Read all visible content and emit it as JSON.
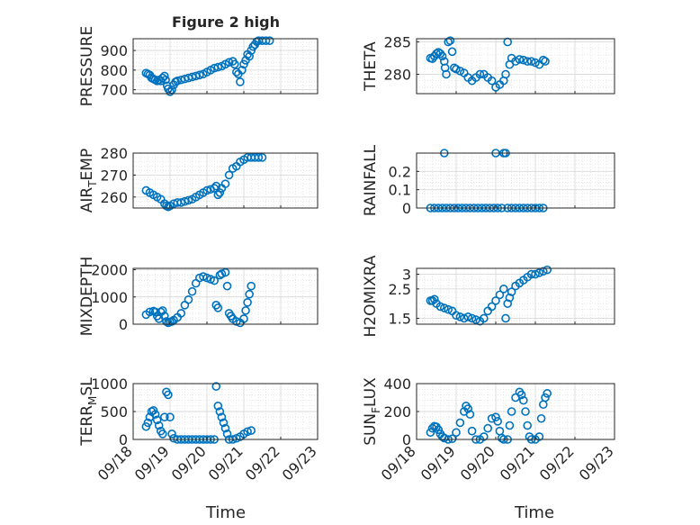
{
  "figure": {
    "title": "Figure 2 high",
    "xlabel": "Time"
  },
  "colors": {
    "marker": "#0072BD",
    "grid": "#d9d9d9",
    "axis": "#262626"
  },
  "chart_data": [
    {
      "type": "scatter",
      "ylabel": "PRESSURE",
      "ylabel_sub": "",
      "ylabel_tail": "",
      "ylim": [
        680,
        960
      ],
      "yticks": [
        700,
        800,
        900
      ],
      "xlim": [
        "09/18",
        "09/23"
      ],
      "xticks": [
        "09/18",
        "09/19",
        "09/20",
        "09/21",
        "09/22",
        "09/23"
      ],
      "points": [
        [
          0.35,
          785
        ],
        [
          0.4,
          780
        ],
        [
          0.45,
          775
        ],
        [
          0.5,
          760
        ],
        [
          0.55,
          755
        ],
        [
          0.6,
          750
        ],
        [
          0.65,
          745
        ],
        [
          0.7,
          750
        ],
        [
          0.75,
          745
        ],
        [
          0.8,
          760
        ],
        [
          0.85,
          770
        ],
        [
          0.88,
          750
        ],
        [
          0.92,
          720
        ],
        [
          0.95,
          705
        ],
        [
          1.0,
          690
        ],
        [
          1.05,
          700
        ],
        [
          1.1,
          725
        ],
        [
          1.15,
          740
        ],
        [
          1.2,
          745
        ],
        [
          1.3,
          750
        ],
        [
          1.4,
          755
        ],
        [
          1.5,
          760
        ],
        [
          1.6,
          765
        ],
        [
          1.7,
          770
        ],
        [
          1.8,
          775
        ],
        [
          1.9,
          780
        ],
        [
          2.0,
          790
        ],
        [
          2.1,
          800
        ],
        [
          2.2,
          810
        ],
        [
          2.3,
          815
        ],
        [
          2.4,
          820
        ],
        [
          2.5,
          830
        ],
        [
          2.6,
          840
        ],
        [
          2.7,
          845
        ],
        [
          2.75,
          830
        ],
        [
          2.8,
          790
        ],
        [
          2.85,
          780
        ],
        [
          2.9,
          740
        ],
        [
          2.95,
          800
        ],
        [
          3.0,
          830
        ],
        [
          3.05,
          850
        ],
        [
          3.1,
          880
        ],
        [
          3.15,
          870
        ],
        [
          3.2,
          900
        ],
        [
          3.25,
          920
        ],
        [
          3.3,
          930
        ],
        [
          3.35,
          945
        ],
        [
          3.4,
          950
        ],
        [
          3.5,
          950
        ],
        [
          3.6,
          950
        ],
        [
          3.7,
          950
        ]
      ]
    },
    {
      "type": "scatter",
      "ylabel": "THETA",
      "ylabel_sub": "",
      "ylabel_tail": "",
      "ylim": [
        277,
        285.5
      ],
      "yticks": [
        280,
        285
      ],
      "xlim": [
        "09/18",
        "09/23"
      ],
      "xticks": [
        "09/18",
        "09/19",
        "09/20",
        "09/21",
        "09/22",
        "09/23"
      ],
      "points": [
        [
          0.35,
          282.5
        ],
        [
          0.4,
          282.4
        ],
        [
          0.45,
          282.8
        ],
        [
          0.5,
          283.2
        ],
        [
          0.55,
          283.4
        ],
        [
          0.6,
          283.2
        ],
        [
          0.65,
          282.8
        ],
        [
          0.7,
          282
        ],
        [
          0.72,
          281
        ],
        [
          0.75,
          280
        ],
        [
          0.8,
          285
        ],
        [
          0.85,
          285.2
        ],
        [
          0.9,
          283.5
        ],
        [
          0.95,
          281
        ],
        [
          1.0,
          280.8
        ],
        [
          1.1,
          280.5
        ],
        [
          1.2,
          280.2
        ],
        [
          1.3,
          279.5
        ],
        [
          1.4,
          279
        ],
        [
          1.5,
          279.5
        ],
        [
          1.6,
          280
        ],
        [
          1.7,
          280
        ],
        [
          1.8,
          279.5
        ],
        [
          1.9,
          279
        ],
        [
          2.0,
          278
        ],
        [
          2.1,
          278.4
        ],
        [
          2.2,
          279
        ],
        [
          2.25,
          280
        ],
        [
          2.3,
          285
        ],
        [
          2.35,
          281.5
        ],
        [
          2.4,
          282.5
        ],
        [
          2.5,
          282
        ],
        [
          2.6,
          282.3
        ],
        [
          2.7,
          282.2
        ],
        [
          2.8,
          282
        ],
        [
          2.9,
          282
        ],
        [
          3.0,
          281.8
        ],
        [
          3.1,
          281.5
        ],
        [
          3.2,
          282.2
        ],
        [
          3.25,
          282
        ]
      ]
    },
    {
      "type": "scatter",
      "ylabel": "AIR",
      "ylabel_sub": "T",
      "ylabel_tail": "EMP",
      "ylim": [
        255,
        280
      ],
      "yticks": [
        260,
        270,
        280
      ],
      "xlim": [
        "09/18",
        "09/23"
      ],
      "xticks": [
        "09/18",
        "09/19",
        "09/20",
        "09/21",
        "09/22",
        "09/23"
      ],
      "points": [
        [
          0.35,
          263
        ],
        [
          0.45,
          262
        ],
        [
          0.55,
          261
        ],
        [
          0.65,
          260
        ],
        [
          0.75,
          259
        ],
        [
          0.85,
          257
        ],
        [
          0.9,
          256
        ],
        [
          0.95,
          255.5
        ],
        [
          1.0,
          256
        ],
        [
          1.1,
          257
        ],
        [
          1.2,
          257.5
        ],
        [
          1.3,
          257.5
        ],
        [
          1.4,
          258
        ],
        [
          1.5,
          258.5
        ],
        [
          1.6,
          259
        ],
        [
          1.7,
          260
        ],
        [
          1.8,
          261
        ],
        [
          1.9,
          262
        ],
        [
          2.0,
          263
        ],
        [
          2.1,
          263.5
        ],
        [
          2.2,
          264
        ],
        [
          2.25,
          265
        ],
        [
          2.3,
          261
        ],
        [
          2.35,
          262
        ],
        [
          2.4,
          264
        ],
        [
          2.5,
          266
        ],
        [
          2.6,
          270
        ],
        [
          2.7,
          273
        ],
        [
          2.8,
          274
        ],
        [
          2.9,
          276
        ],
        [
          3.0,
          277
        ],
        [
          3.1,
          278
        ],
        [
          3.2,
          278
        ],
        [
          3.3,
          278
        ],
        [
          3.4,
          278
        ],
        [
          3.5,
          278
        ]
      ]
    },
    {
      "type": "scatter",
      "ylabel": "RAINFALL",
      "ylabel_sub": "",
      "ylabel_tail": "",
      "ylim": [
        0,
        0.3
      ],
      "yticks": [
        0,
        0.1,
        0.2
      ],
      "xlim": [
        "09/18",
        "09/23"
      ],
      "xticks": [
        "09/18",
        "09/19",
        "09/20",
        "09/21",
        "09/22",
        "09/23"
      ],
      "points": [
        [
          0.35,
          0
        ],
        [
          0.45,
          0
        ],
        [
          0.55,
          0
        ],
        [
          0.65,
          0
        ],
        [
          0.7,
          0.3
        ],
        [
          0.75,
          0
        ],
        [
          0.85,
          0
        ],
        [
          0.95,
          0
        ],
        [
          1.05,
          0
        ],
        [
          1.15,
          0
        ],
        [
          1.25,
          0
        ],
        [
          1.35,
          0
        ],
        [
          1.45,
          0
        ],
        [
          1.55,
          0
        ],
        [
          1.65,
          0
        ],
        [
          1.75,
          0
        ],
        [
          1.85,
          0
        ],
        [
          1.95,
          0
        ],
        [
          2.0,
          0.3
        ],
        [
          2.05,
          0
        ],
        [
          2.15,
          0
        ],
        [
          2.2,
          0.3
        ],
        [
          2.25,
          0.3
        ],
        [
          2.3,
          0
        ],
        [
          2.4,
          0
        ],
        [
          2.5,
          0
        ],
        [
          2.6,
          0
        ],
        [
          2.7,
          0
        ],
        [
          2.8,
          0
        ],
        [
          2.9,
          0
        ],
        [
          3.0,
          0
        ],
        [
          3.1,
          0
        ],
        [
          3.2,
          0
        ]
      ]
    },
    {
      "type": "scatter",
      "ylabel": "MIXDEPTH",
      "ylabel_sub": "",
      "ylabel_tail": "",
      "ylim": [
        0,
        2050
      ],
      "yticks": [
        0,
        1000,
        2000
      ],
      "xlim": [
        "09/18",
        "09/23"
      ],
      "xticks": [
        "09/18",
        "09/19",
        "09/20",
        "09/21",
        "09/22",
        "09/23"
      ],
      "points": [
        [
          0.35,
          350
        ],
        [
          0.45,
          450
        ],
        [
          0.55,
          480
        ],
        [
          0.6,
          450
        ],
        [
          0.65,
          300
        ],
        [
          0.7,
          200
        ],
        [
          0.75,
          450
        ],
        [
          0.8,
          500
        ],
        [
          0.85,
          300
        ],
        [
          0.9,
          100
        ],
        [
          0.95,
          50
        ],
        [
          1.0,
          80
        ],
        [
          1.05,
          100
        ],
        [
          1.1,
          150
        ],
        [
          1.2,
          250
        ],
        [
          1.3,
          400
        ],
        [
          1.4,
          700
        ],
        [
          1.5,
          900
        ],
        [
          1.6,
          1200
        ],
        [
          1.7,
          1500
        ],
        [
          1.8,
          1700
        ],
        [
          1.9,
          1750
        ],
        [
          2.0,
          1700
        ],
        [
          2.1,
          1650
        ],
        [
          2.2,
          1600
        ],
        [
          2.25,
          700
        ],
        [
          2.3,
          600
        ],
        [
          2.35,
          1800
        ],
        [
          2.4,
          1850
        ],
        [
          2.5,
          1900
        ],
        [
          2.55,
          1400
        ],
        [
          2.6,
          400
        ],
        [
          2.65,
          300
        ],
        [
          2.7,
          200
        ],
        [
          2.8,
          100
        ],
        [
          2.9,
          50
        ],
        [
          3.0,
          200
        ],
        [
          3.05,
          500
        ],
        [
          3.1,
          800
        ],
        [
          3.15,
          1100
        ],
        [
          3.2,
          1400
        ]
      ]
    },
    {
      "type": "scatter",
      "ylabel": "H2OMIXRA",
      "ylabel_sub": "",
      "ylabel_tail": "",
      "ylim": [
        1.3,
        3.2
      ],
      "yticks": [
        1.5,
        2.5,
        3
      ],
      "xlim": [
        "09/18",
        "09/23"
      ],
      "xticks": [
        "09/18",
        "09/19",
        "09/20",
        "09/21",
        "09/22",
        "09/23"
      ],
      "points": [
        [
          0.35,
          2.1
        ],
        [
          0.4,
          2.1
        ],
        [
          0.45,
          2.15
        ],
        [
          0.5,
          2.0
        ],
        [
          0.6,
          1.9
        ],
        [
          0.7,
          1.85
        ],
        [
          0.8,
          1.8
        ],
        [
          0.9,
          1.75
        ],
        [
          1.0,
          1.6
        ],
        [
          1.1,
          1.55
        ],
        [
          1.2,
          1.5
        ],
        [
          1.3,
          1.55
        ],
        [
          1.4,
          1.5
        ],
        [
          1.5,
          1.45
        ],
        [
          1.6,
          1.4
        ],
        [
          1.7,
          1.5
        ],
        [
          1.8,
          1.75
        ],
        [
          1.9,
          1.9
        ],
        [
          2.0,
          2.1
        ],
        [
          2.1,
          2.3
        ],
        [
          2.2,
          2.5
        ],
        [
          2.25,
          1.5
        ],
        [
          2.3,
          2.0
        ],
        [
          2.35,
          2.2
        ],
        [
          2.4,
          2.4
        ],
        [
          2.5,
          2.6
        ],
        [
          2.6,
          2.7
        ],
        [
          2.7,
          2.8
        ],
        [
          2.8,
          2.9
        ],
        [
          2.9,
          3.0
        ],
        [
          3.0,
          3.0
        ],
        [
          3.1,
          3.05
        ],
        [
          3.2,
          3.1
        ],
        [
          3.3,
          3.15
        ]
      ]
    },
    {
      "type": "scatter",
      "ylabel": "TERR",
      "ylabel_sub": "M",
      "ylabel_tail": "SL",
      "ylim": [
        0,
        1000
      ],
      "yticks": [
        0,
        500,
        1000
      ],
      "xlim": [
        "09/18",
        "09/23"
      ],
      "xticks": [
        "09/18",
        "09/19",
        "09/20",
        "09/21",
        "09/22",
        "09/23"
      ],
      "points": [
        [
          0.35,
          230
        ],
        [
          0.4,
          300
        ],
        [
          0.45,
          400
        ],
        [
          0.5,
          500
        ],
        [
          0.55,
          520
        ],
        [
          0.6,
          450
        ],
        [
          0.65,
          350
        ],
        [
          0.7,
          250
        ],
        [
          0.75,
          150
        ],
        [
          0.8,
          100
        ],
        [
          0.85,
          400
        ],
        [
          0.9,
          850
        ],
        [
          0.95,
          800
        ],
        [
          1.0,
          400
        ],
        [
          1.05,
          100
        ],
        [
          1.1,
          20
        ],
        [
          1.2,
          0
        ],
        [
          1.3,
          0
        ],
        [
          1.4,
          0
        ],
        [
          1.5,
          0
        ],
        [
          1.6,
          0
        ],
        [
          1.7,
          0
        ],
        [
          1.8,
          0
        ],
        [
          1.9,
          0
        ],
        [
          2.0,
          0
        ],
        [
          2.1,
          0
        ],
        [
          2.2,
          0
        ],
        [
          2.25,
          950
        ],
        [
          2.3,
          600
        ],
        [
          2.35,
          500
        ],
        [
          2.4,
          400
        ],
        [
          2.45,
          300
        ],
        [
          2.5,
          200
        ],
        [
          2.55,
          100
        ],
        [
          2.6,
          0
        ],
        [
          2.7,
          0
        ],
        [
          2.8,
          20
        ],
        [
          2.9,
          50
        ],
        [
          3.0,
          100
        ],
        [
          3.1,
          140
        ],
        [
          3.2,
          160
        ]
      ]
    },
    {
      "type": "scatter",
      "ylabel": "SUN",
      "ylabel_sub": "F",
      "ylabel_tail": "LUX",
      "ylim": [
        0,
        400
      ],
      "yticks": [
        0,
        200,
        400
      ],
      "xlim": [
        "09/18",
        "09/23"
      ],
      "xticks": [
        "09/18",
        "09/19",
        "09/20",
        "09/21",
        "09/22",
        "09/23"
      ],
      "points": [
        [
          0.35,
          50
        ],
        [
          0.4,
          80
        ],
        [
          0.45,
          95
        ],
        [
          0.5,
          90
        ],
        [
          0.55,
          70
        ],
        [
          0.6,
          40
        ],
        [
          0.65,
          20
        ],
        [
          0.7,
          10
        ],
        [
          0.8,
          0
        ],
        [
          0.9,
          5
        ],
        [
          1.0,
          50
        ],
        [
          1.1,
          120
        ],
        [
          1.2,
          200
        ],
        [
          1.25,
          240
        ],
        [
          1.3,
          220
        ],
        [
          1.35,
          180
        ],
        [
          1.4,
          60
        ],
        [
          1.5,
          0
        ],
        [
          1.6,
          0
        ],
        [
          1.7,
          20
        ],
        [
          1.8,
          80
        ],
        [
          1.9,
          150
        ],
        [
          2.0,
          160
        ],
        [
          2.05,
          130
        ],
        [
          2.1,
          60
        ],
        [
          2.15,
          10
        ],
        [
          2.2,
          0
        ],
        [
          2.3,
          0
        ],
        [
          2.35,
          100
        ],
        [
          2.4,
          200
        ],
        [
          2.5,
          300
        ],
        [
          2.6,
          340
        ],
        [
          2.65,
          320
        ],
        [
          2.7,
          280
        ],
        [
          2.75,
          200
        ],
        [
          2.8,
          100
        ],
        [
          2.85,
          20
        ],
        [
          2.9,
          0
        ],
        [
          3.0,
          0
        ],
        [
          3.1,
          20
        ],
        [
          3.15,
          150
        ],
        [
          3.2,
          250
        ],
        [
          3.25,
          300
        ],
        [
          3.3,
          330
        ]
      ]
    }
  ]
}
